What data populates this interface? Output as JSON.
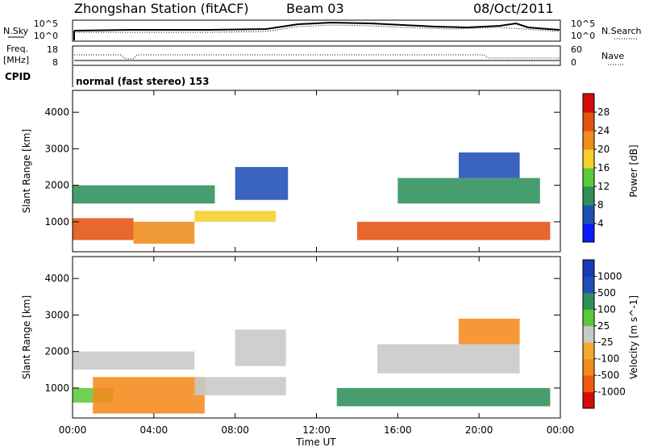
{
  "header": {
    "station": "Zhongshan Station (fitACF)",
    "beam": "Beam 03",
    "date": "08/Oct/2011"
  },
  "summary": {
    "left_label_1": "N.Sky",
    "left_label_2": "Freq.",
    "left_label_2_unit": "[MHz]",
    "left_label_3": "CPID",
    "right_label_1": "N.Search",
    "right_label_2": "Nave",
    "top_left_ticks": [
      "10^5",
      "10^0"
    ],
    "top_right_ticks": [
      "10^5",
      "10^0"
    ],
    "mid_left_ticks": [
      "18",
      "8"
    ],
    "mid_right_ticks": [
      "60",
      "0"
    ],
    "cpid_text": "normal (fast stereo) 153"
  },
  "x_axis": {
    "label": "Time UT",
    "ticks": [
      "00:00",
      "04:00",
      "08:00",
      "12:00",
      "16:00",
      "20:00",
      "00:00"
    ]
  },
  "colors": {
    "power": [
      "#0a1cff",
      "#1f4fb6",
      "#2f8f5a",
      "#5dc93a",
      "#f5cf2a",
      "#ef8c1c",
      "#e4520f",
      "#d40b0b"
    ],
    "velocity": [
      "#d40b0b",
      "#ef5a0f",
      "#f58a1c",
      "#f2ab2f",
      "#c8c8c8",
      "#5dc93a",
      "#2f8f5a",
      "#1f4fb6",
      "#1c3ab8"
    ]
  },
  "chart_data": [
    {
      "type": "heatmap",
      "title": "",
      "ylabel": "Slant Range [km]",
      "yticks": [
        "1000",
        "2000",
        "3000",
        "4000"
      ],
      "ylim": [
        180,
        4600
      ],
      "xlim_hours": [
        0,
        24
      ],
      "colorbar_label": "Power [dB]",
      "colorbar_ticks": [
        "4",
        "8",
        "12",
        "16",
        "20",
        "24",
        "28"
      ],
      "clim": [
        0,
        32
      ],
      "regions": [
        {
          "t0": 0.0,
          "t1": 3.0,
          "r0": 500,
          "r1": 1100,
          "level": 24
        },
        {
          "t0": 3.0,
          "t1": 6.0,
          "r0": 400,
          "r1": 1000,
          "level": 22
        },
        {
          "t0": 6.0,
          "t1": 10.0,
          "r0": 1000,
          "r1": 1300,
          "level": 16
        },
        {
          "t0": 0.0,
          "t1": 7.0,
          "r0": 1500,
          "r1": 2000,
          "level": 8
        },
        {
          "t0": 8.0,
          "t1": 10.6,
          "r0": 1600,
          "r1": 2500,
          "level": 6
        },
        {
          "t0": 14.0,
          "t1": 23.5,
          "r0": 500,
          "r1": 1000,
          "level": 24
        },
        {
          "t0": 16.0,
          "t1": 23.0,
          "r0": 1500,
          "r1": 2200,
          "level": 10
        },
        {
          "t0": 19.0,
          "t1": 22.0,
          "r0": 2200,
          "r1": 2900,
          "level": 6
        }
      ]
    },
    {
      "type": "heatmap",
      "title": "",
      "ylabel": "Slant Range [km]",
      "yticks": [
        "1000",
        "2000",
        "3000",
        "4000"
      ],
      "ylim": [
        180,
        4600
      ],
      "xlim_hours": [
        0,
        24
      ],
      "colorbar_label": "Velocity [m s^-1]",
      "colorbar_ticks": [
        "1000",
        "500",
        "100",
        "25",
        "-25",
        "-100",
        "-500",
        "-1000"
      ],
      "clim": [
        -1000,
        1000
      ],
      "regions": [
        {
          "t0": 0.0,
          "t1": 2.0,
          "r0": 600,
          "r1": 1000,
          "level": 100
        },
        {
          "t0": 1.0,
          "t1": 6.5,
          "r0": 300,
          "r1": 1300,
          "level": -200
        },
        {
          "t0": 0.0,
          "t1": 6.0,
          "r0": 1500,
          "r1": 2000,
          "level": 0
        },
        {
          "t0": 6.0,
          "t1": 10.5,
          "r0": 800,
          "r1": 1300,
          "level": 0
        },
        {
          "t0": 8.0,
          "t1": 10.5,
          "r0": 1600,
          "r1": 2600,
          "level": 0
        },
        {
          "t0": 13.0,
          "t1": 23.5,
          "r0": 500,
          "r1": 1000,
          "level": 200
        },
        {
          "t0": 15.0,
          "t1": 22.0,
          "r0": 1400,
          "r1": 2200,
          "level": 0
        },
        {
          "t0": 19.0,
          "t1": 22.0,
          "r0": 2200,
          "r1": 2900,
          "level": -150
        }
      ]
    }
  ]
}
